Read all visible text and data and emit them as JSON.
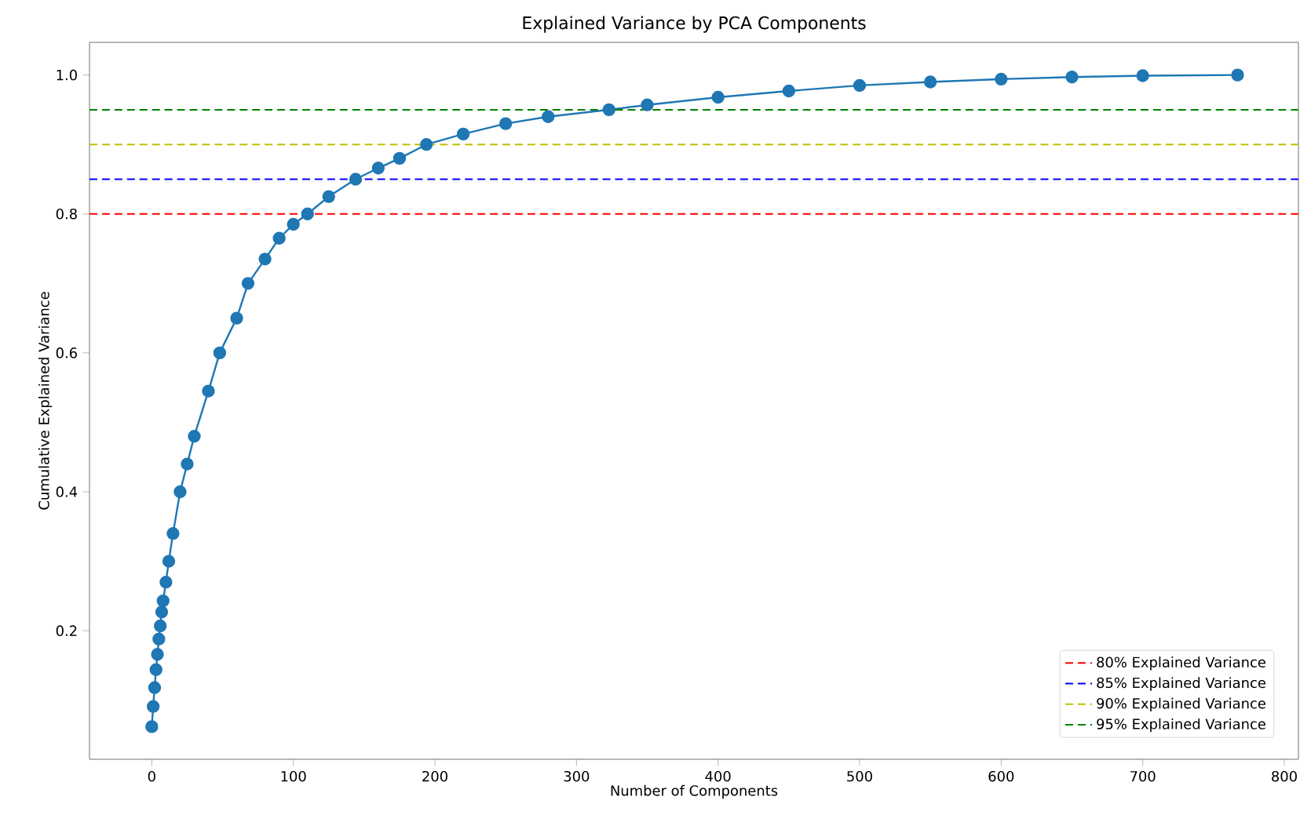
{
  "chart_data": {
    "type": "line",
    "title": "Explained Variance by PCA Components",
    "xlabel": "Number of Components",
    "ylabel": "Cumulative Explained Variance",
    "x": [
      0,
      1,
      2,
      3,
      4,
      5,
      6,
      7,
      8,
      10,
      12,
      15,
      20,
      25,
      30,
      40,
      48,
      60,
      68,
      80,
      90,
      100,
      110,
      125,
      144,
      160,
      175,
      194,
      220,
      250,
      280,
      323,
      350,
      400,
      450,
      500,
      550,
      600,
      650,
      700,
      767
    ],
    "series": [
      {
        "color": "#1f77b4",
        "marker": "circle",
        "values": [
          0.062,
          0.091,
          0.118,
          0.144,
          0.166,
          0.188,
          0.207,
          0.227,
          0.243,
          0.27,
          0.3,
          0.34,
          0.4,
          0.44,
          0.48,
          0.545,
          0.6,
          0.65,
          0.7,
          0.735,
          0.765,
          0.785,
          0.8,
          0.825,
          0.85,
          0.866,
          0.88,
          0.9,
          0.915,
          0.93,
          0.94,
          0.95,
          0.957,
          0.968,
          0.977,
          0.985,
          0.99,
          0.994,
          0.997,
          0.999,
          1.0
        ]
      }
    ],
    "xlim": [
      -44,
      810
    ],
    "ylim": [
      0.015,
      1.047
    ],
    "xticks": [
      0,
      100,
      200,
      300,
      400,
      500,
      600,
      700,
      800
    ],
    "yticks": [
      0.2,
      0.4,
      0.6,
      0.8,
      {
        "value": 1,
        "label": "1.0"
      }
    ],
    "ref_lines": [
      {
        "axis": "y",
        "value": 0.8,
        "label": "80% Explained Variance",
        "color": "#ff0000",
        "line_style": "dashed"
      },
      {
        "axis": "y",
        "value": 0.85,
        "label": "85% Explained Variance",
        "color": "#0000ff",
        "line_style": "dashed"
      },
      {
        "axis": "y",
        "value": 0.9,
        "label": "90% Explained Variance",
        "color": "#bfbf00",
        "line_style": "dashed"
      },
      {
        "axis": "y",
        "value": 0.95,
        "label": "95% Explained Variance",
        "color": "#008000",
        "line_style": "dashed"
      }
    ],
    "legend": "bottom right",
    "grid": false
  }
}
